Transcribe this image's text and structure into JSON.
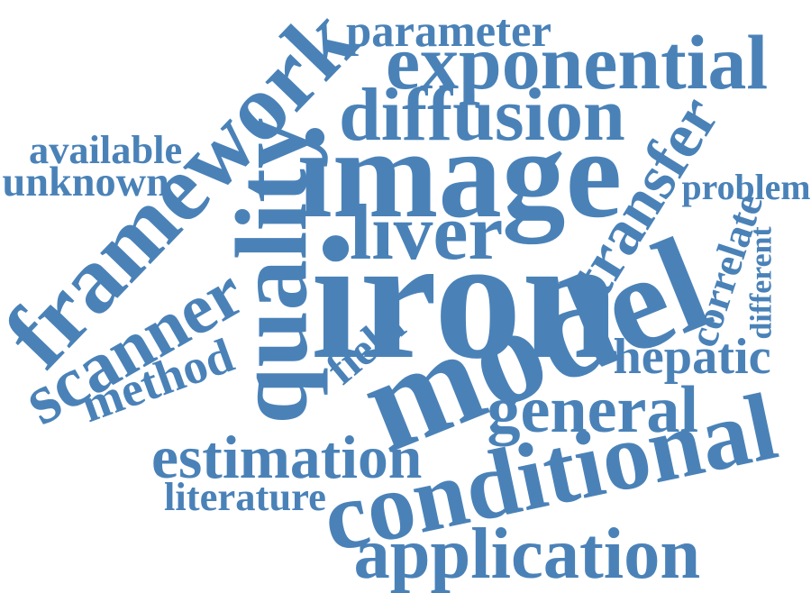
{
  "color": "#4a82b8",
  "words": [
    {
      "id": "parameter",
      "text": "parameter"
    },
    {
      "id": "exponential",
      "text": "exponential"
    },
    {
      "id": "framework",
      "text": "framework"
    },
    {
      "id": "diffusion",
      "text": "diffusion"
    },
    {
      "id": "available",
      "text": "available"
    },
    {
      "id": "unknown",
      "text": "unknown"
    },
    {
      "id": "image",
      "text": "image"
    },
    {
      "id": "quality",
      "text": "quality"
    },
    {
      "id": "transfer",
      "text": "transfer"
    },
    {
      "id": "problem",
      "text": "problem"
    },
    {
      "id": "liver",
      "text": "liver"
    },
    {
      "id": "correlate",
      "text": "correlate"
    },
    {
      "id": "different",
      "text": "different"
    },
    {
      "id": "iron",
      "text": "iron"
    },
    {
      "id": "scanner",
      "text": "scanner"
    },
    {
      "id": "model",
      "text": "model"
    },
    {
      "id": "field",
      "text": "field"
    },
    {
      "id": "method",
      "text": "method"
    },
    {
      "id": "hepatic",
      "text": "hepatic"
    },
    {
      "id": "general",
      "text": "general"
    },
    {
      "id": "estimation",
      "text": "estimation"
    },
    {
      "id": "conditional",
      "text": "conditional"
    },
    {
      "id": "literature",
      "text": "literature"
    },
    {
      "id": "application",
      "text": "application"
    }
  ]
}
